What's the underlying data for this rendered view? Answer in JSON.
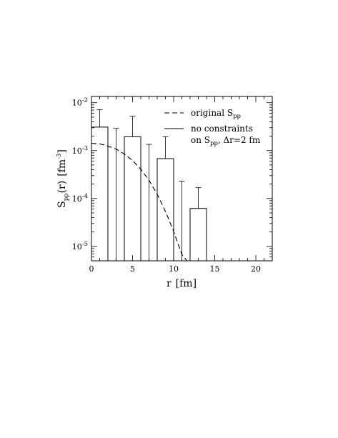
{
  "chart_data": {
    "type": "bar",
    "title": "",
    "xlabel": {
      "base": "r",
      "unit": "[fm]"
    },
    "ylabel": {
      "base": "S",
      "sub": "pp",
      "arg": "(r)",
      "unit_base": "[fm",
      "unit_exp": "-3",
      "unit_close": "]"
    },
    "xlim": [
      0,
      22
    ],
    "ylim": [
      5e-06,
      0.0135
    ],
    "yscale": "log",
    "x_ticks": [
      "0",
      "5",
      "10",
      "15",
      "20"
    ],
    "y_ticks": [
      {
        "base": "10",
        "exp": "-5",
        "value": 1e-05
      },
      {
        "base": "10",
        "exp": "-4",
        "value": 0.0001
      },
      {
        "base": "10",
        "exp": "-3",
        "value": 0.001
      },
      {
        "base": "10",
        "exp": "-2",
        "value": 0.01
      }
    ],
    "grid": false,
    "legend_placement": "top-right",
    "series": [
      {
        "kind": "curve",
        "style": "dashed",
        "legend": {
          "text": "original S",
          "sub": "pp"
        },
        "x": [
          0,
          1,
          2,
          3,
          4,
          5,
          6,
          7,
          8,
          9,
          10,
          11,
          11.7
        ],
        "y": [
          0.00142,
          0.00138,
          0.00125,
          0.00107,
          0.00085,
          0.00062,
          0.00041,
          0.00024,
          0.000123,
          5.4e-05,
          2.05e-05,
          6.8e-06,
          4.8e-06
        ]
      },
      {
        "kind": "histogram",
        "style": "solid",
        "legend": {
          "line1": "no constraints",
          "line2_pre": "on S",
          "line2_sub": "pp",
          "line2_post": ", Δr=2 fm"
        },
        "bin_width": 2,
        "bins": [
          {
            "x_start": 0,
            "value": 0.0031,
            "err_upper": 0.0072
          },
          {
            "x_start": 2,
            "value": 0,
            "err_upper": 0.0029
          },
          {
            "x_start": 4,
            "value": 0.00195,
            "err_upper": 0.0052
          },
          {
            "x_start": 6,
            "value": 0,
            "err_upper": 0.00135
          },
          {
            "x_start": 8,
            "value": 0.00068,
            "err_upper": 0.00195
          },
          {
            "x_start": 10,
            "value": 0,
            "err_upper": 0.00023
          },
          {
            "x_start": 12,
            "value": 6.2e-05,
            "err_upper": 0.000168
          }
        ]
      }
    ]
  }
}
